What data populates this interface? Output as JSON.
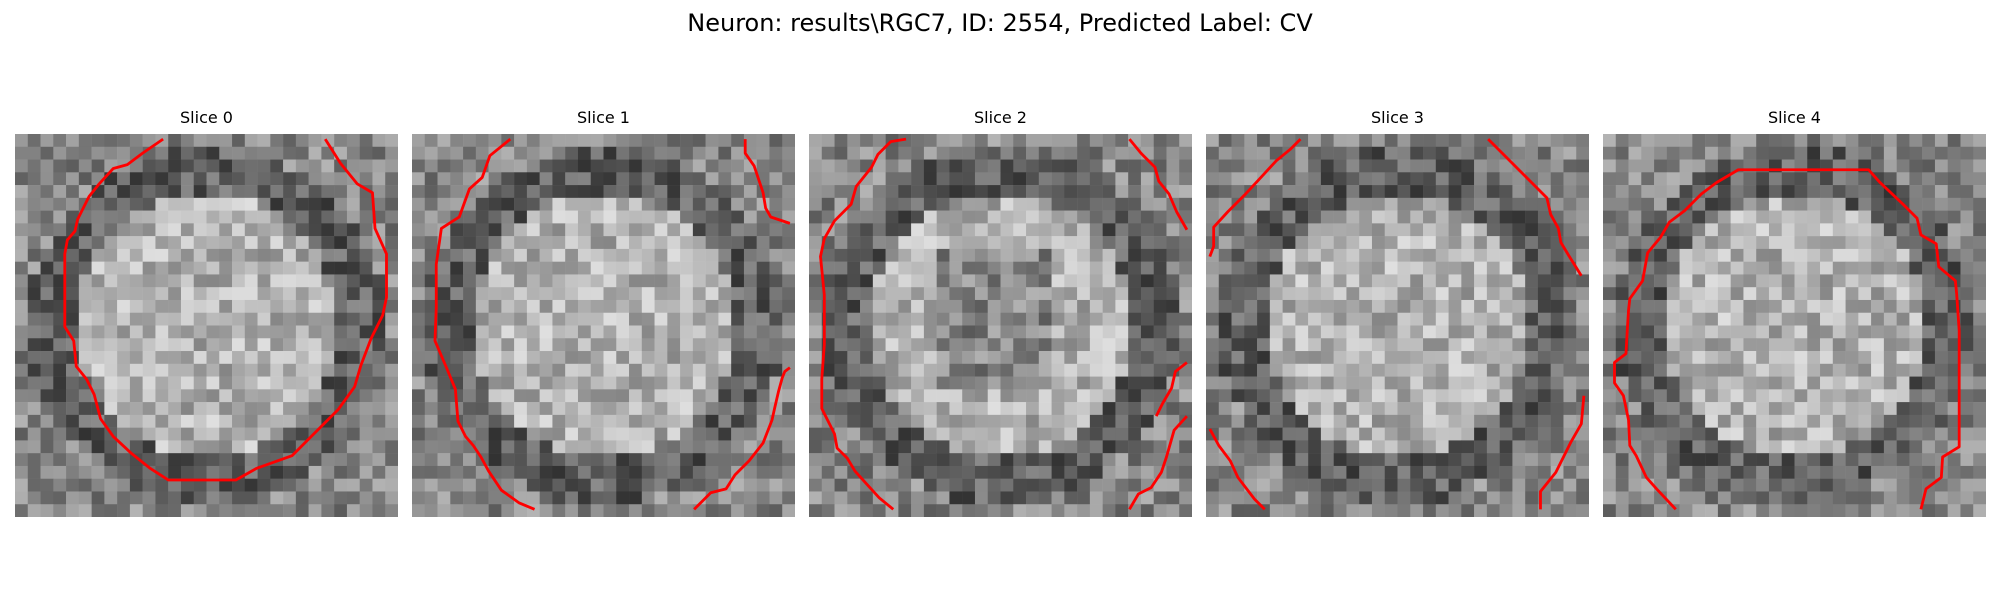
{
  "figure": {
    "title": "Neuron: results\\RGC7, ID: 2554, Predicted Label: CV"
  },
  "panels": [
    {
      "title": "Slice 0"
    },
    {
      "title": "Slice 1"
    },
    {
      "title": "Slice 2"
    },
    {
      "title": "Slice 3"
    },
    {
      "title": "Slice 4"
    }
  ],
  "colors": {
    "contour": "#ff0000",
    "background": "#ffffff",
    "colormap": "grayscale"
  }
}
